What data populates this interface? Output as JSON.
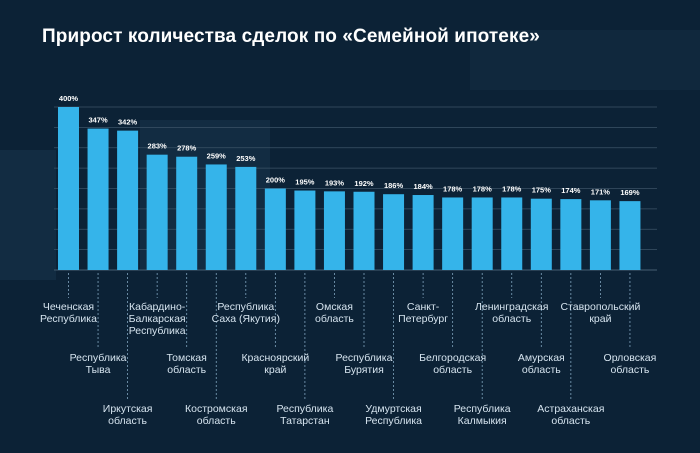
{
  "title": "Прирост количества сделок по «Семейной ипотеке»",
  "colors": {
    "background": "#0c2236",
    "bar": "#35b4ea",
    "grid": "#3b5266",
    "text": "#ffffff",
    "label": "#d6e4ef"
  },
  "chart_data": {
    "type": "bar",
    "title": "Прирост количества сделок по «Семейной ипотеке»",
    "xlabel": "",
    "ylabel": "",
    "ylim": [
      0,
      400
    ],
    "grid": true,
    "legend": "none",
    "categories": [
      "Чеченская Республика",
      "Республика Тыва",
      "Иркутская область",
      "Кабардино-Балкарская Республика",
      "Томская область",
      "Костромская область",
      "Республика Саха (Якутия)",
      "Красноярский край",
      "Республика Татарстан",
      "Омская область",
      "Республика Бурятия",
      "Удмуртская Республика",
      "Санкт-Петербург",
      "Белгородская область",
      "Республика Калмыкия",
      "Ленинградская область",
      "Амурская область",
      "Астраханская область",
      "Ставропольский край",
      "Орловская область"
    ],
    "category_lines": [
      [
        "Чеченская",
        "Республика"
      ],
      [
        "Республика",
        "Тыва"
      ],
      [
        "Иркутская",
        "область"
      ],
      [
        "Кабардино-",
        "Балкарская",
        "Республика"
      ],
      [
        "Томская",
        "область"
      ],
      [
        "Костромская",
        "область"
      ],
      [
        "Республика",
        "Саха (Якутия)"
      ],
      [
        "Красноярский",
        "край"
      ],
      [
        "Республика",
        "Татарстан"
      ],
      [
        "Омская",
        "область"
      ],
      [
        "Республика",
        "Бурятия"
      ],
      [
        "Удмуртская",
        "Республика"
      ],
      [
        "Санкт-",
        "Петербург"
      ],
      [
        "Белгородская",
        "область"
      ],
      [
        "Республика",
        "Калмыкия"
      ],
      [
        "Ленинградская",
        "область"
      ],
      [
        "Амурская",
        "область"
      ],
      [
        "Астраханская",
        "область"
      ],
      [
        "Ставропольский",
        "край"
      ],
      [
        "Орловская",
        "область"
      ]
    ],
    "values": [
      400,
      347,
      342,
      283,
      278,
      259,
      253,
      200,
      195,
      193,
      192,
      186,
      184,
      178,
      178,
      178,
      175,
      174,
      171,
      169
    ],
    "value_labels": [
      "400%",
      "347%",
      "342%",
      "283%",
      "278%",
      "259%",
      "253%",
      "200%",
      "195%",
      "193%",
      "192%",
      "186%",
      "184%",
      "178%",
      "178%",
      "178%",
      "175%",
      "174%",
      "171%",
      "169%"
    ]
  }
}
